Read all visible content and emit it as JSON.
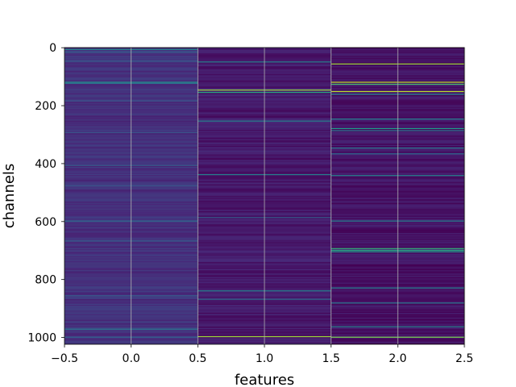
{
  "chart_data": {
    "type": "heatmap",
    "title": "",
    "xlabel": "features",
    "ylabel": "channels",
    "xlim": [
      -0.5,
      2.5
    ],
    "ylim": [
      1023.5,
      -0.5
    ],
    "x_ticks": [
      -0.5,
      0.0,
      0.5,
      1.0,
      1.5,
      2.0,
      2.5
    ],
    "x_tick_labels": [
      "−0.5",
      "0.0",
      "0.5",
      "1.0",
      "1.5",
      "2.0",
      "2.5"
    ],
    "y_ticks": [
      0,
      200,
      400,
      600,
      800,
      1000
    ],
    "y_tick_labels": [
      "0",
      "200",
      "400",
      "600",
      "800",
      "1000"
    ],
    "grid": true,
    "colormap": "viridis",
    "n_rows": 1024,
    "columns": [
      0,
      1,
      2
    ],
    "base_levels": [
      0.14,
      0.07,
      0.05
    ],
    "bright_rows": [
      [
        {
          "row": 5,
          "value": 0.45
        },
        {
          "row": 14,
          "value": 0.3
        },
        {
          "row": 45,
          "value": 0.3
        },
        {
          "row": 118,
          "value": 0.5
        },
        {
          "row": 122,
          "value": 0.38
        },
        {
          "row": 182,
          "value": 0.25
        },
        {
          "row": 292,
          "value": 0.25
        },
        {
          "row": 405,
          "value": 0.3
        },
        {
          "row": 475,
          "value": 0.25
        },
        {
          "row": 597,
          "value": 0.35
        },
        {
          "row": 666,
          "value": 0.3
        },
        {
          "row": 855,
          "value": 0.3
        },
        {
          "row": 970,
          "value": 0.4
        },
        {
          "row": 998,
          "value": 0.3
        }
      ],
      [
        {
          "row": 48,
          "value": 0.45
        },
        {
          "row": 145,
          "value": 0.85
        },
        {
          "row": 153,
          "value": 0.6
        },
        {
          "row": 252,
          "value": 0.45
        },
        {
          "row": 437,
          "value": 0.45
        },
        {
          "row": 585,
          "value": 0.3
        },
        {
          "row": 838,
          "value": 0.45
        },
        {
          "row": 867,
          "value": 0.35
        },
        {
          "row": 996,
          "value": 0.85
        }
      ],
      [
        {
          "row": 55,
          "value": 0.85
        },
        {
          "row": 118,
          "value": 0.9
        },
        {
          "row": 125,
          "value": 0.7
        },
        {
          "row": 150,
          "value": 0.9
        },
        {
          "row": 160,
          "value": 0.45
        },
        {
          "row": 245,
          "value": 0.45
        },
        {
          "row": 278,
          "value": 0.55
        },
        {
          "row": 285,
          "value": 0.4
        },
        {
          "row": 345,
          "value": 0.4
        },
        {
          "row": 365,
          "value": 0.35
        },
        {
          "row": 440,
          "value": 0.45
        },
        {
          "row": 597,
          "value": 0.45
        },
        {
          "row": 692,
          "value": 0.65
        },
        {
          "row": 698,
          "value": 0.6
        },
        {
          "row": 703,
          "value": 0.55
        },
        {
          "row": 828,
          "value": 0.45
        },
        {
          "row": 880,
          "value": 0.4
        },
        {
          "row": 962,
          "value": 0.45
        },
        {
          "row": 998,
          "value": 0.8
        }
      ]
    ]
  }
}
